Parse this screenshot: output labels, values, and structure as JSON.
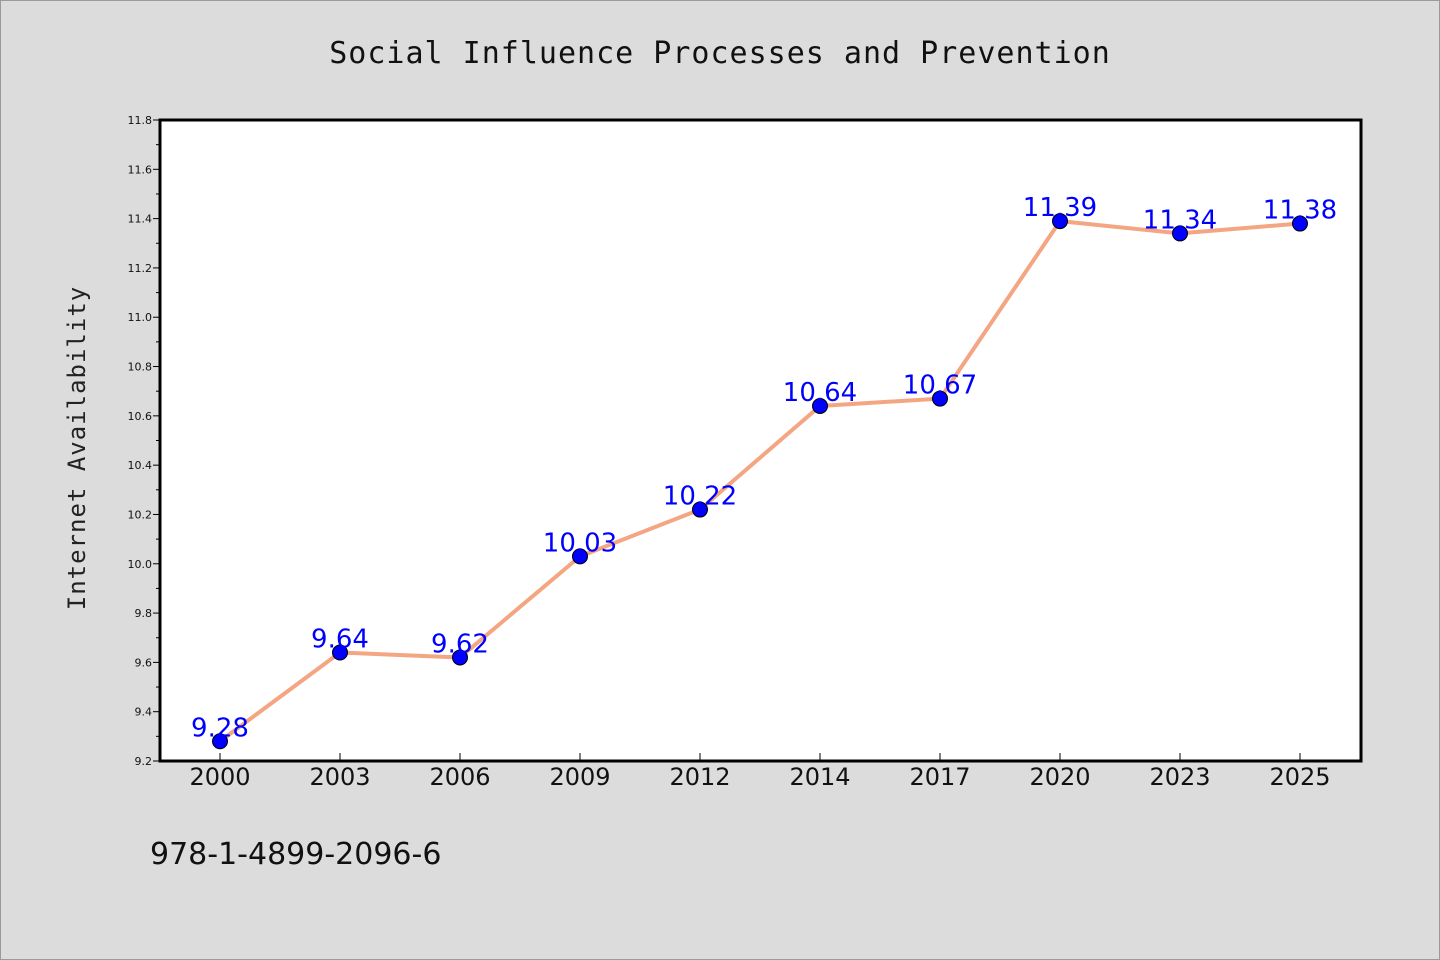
{
  "chart_data": {
    "type": "line",
    "title": "Social Influence Processes and Prevention",
    "xlabel": "",
    "ylabel": "Internet Availability",
    "categories": [
      "2000",
      "2003",
      "2006",
      "2009",
      "2012",
      "2014",
      "2017",
      "2020",
      "2023",
      "2025"
    ],
    "series": [
      {
        "values": [
          9.28,
          9.64,
          9.62,
          10.03,
          10.22,
          10.64,
          10.67,
          11.39,
          11.34,
          11.38
        ],
        "labels": [
          "9.28",
          "9.64",
          "9.62",
          "10.03",
          "10.22",
          "10.64",
          "10.67",
          "11.39",
          "11.34",
          "11.38"
        ],
        "line_color": "#f4a582",
        "marker_color": "#0000ff"
      }
    ],
    "ylim": [
      9.2,
      11.8
    ],
    "yticks": [
      "9.2",
      "9.4",
      "9.6",
      "9.8",
      "10.0",
      "10.2",
      "10.4",
      "10.6",
      "10.8",
      "11.0",
      "11.2",
      "11.4",
      "11.6",
      "11.8"
    ],
    "grid": false,
    "legend": "none"
  },
  "footer_text": "978-1-4899-2096-6"
}
